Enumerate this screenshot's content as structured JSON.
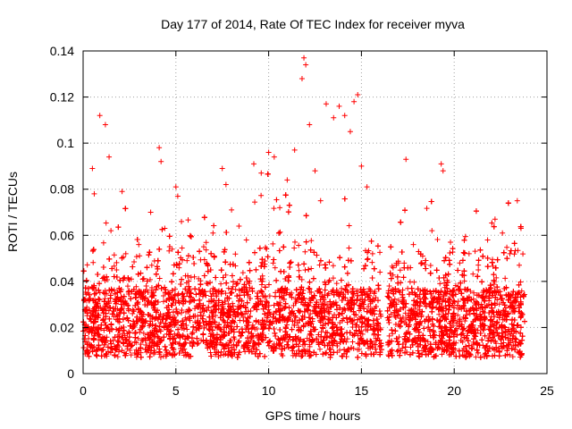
{
  "chart_data": {
    "type": "scatter",
    "title": "Day 177 of 2014, Rate Of TEC Index for receiver myva",
    "xlabel": "GPS time / hours",
    "ylabel": "ROTI / TECUs",
    "xlim": [
      0,
      25
    ],
    "ylim": [
      0,
      0.14
    ],
    "x_ticks": [
      0,
      5,
      10,
      15,
      20,
      25
    ],
    "y_ticks": [
      0,
      0.02,
      0.04,
      0.06,
      0.08,
      0.1,
      0.12,
      0.14
    ],
    "x_tick_labels": [
      "0",
      "5",
      "10",
      "15",
      "20",
      "25"
    ],
    "y_tick_labels": [
      "0",
      "0.02",
      "0.04",
      "0.06",
      "0.08",
      "0.1",
      "0.12",
      "0.14"
    ],
    "grid": true,
    "marker": "+",
    "color": "#ff0000",
    "data_gap_hours": [
      16.1,
      16.4
    ],
    "series": [
      {
        "x": [
          0.1,
          0.3,
          0.5,
          0.6,
          0.9,
          1.2,
          1.4,
          1.5,
          1.8,
          2.1,
          2.3,
          2.6,
          3.0,
          3.4,
          3.7,
          4.1,
          4.2,
          4.4,
          4.8,
          5.0,
          5.1,
          5.3,
          5.6,
          6.0,
          6.5,
          7.0,
          7.5,
          7.7,
          8.0,
          8.4,
          8.8,
          9.2,
          9.6,
          10.0,
          10.3,
          10.6,
          11.0,
          11.4,
          11.8,
          11.9,
          12.0,
          12.2,
          12.5,
          12.8,
          13.1,
          13.5,
          13.8,
          14.1,
          14.4,
          14.6,
          14.8,
          15.0,
          15.3,
          15.6,
          16.0,
          16.5,
          17.0,
          17.4,
          17.8,
          18.3,
          18.8,
          19.3,
          19.4,
          19.8,
          20.3,
          20.8,
          21.3,
          21.8,
          22.2,
          22.6,
          23.0,
          23.4,
          23.6
        ],
        "y": [
          0.021,
          0.032,
          0.089,
          0.078,
          0.112,
          0.108,
          0.094,
          0.062,
          0.045,
          0.079,
          0.052,
          0.041,
          0.056,
          0.038,
          0.047,
          0.098,
          0.092,
          0.063,
          0.054,
          0.081,
          0.077,
          0.066,
          0.049,
          0.042,
          0.055,
          0.061,
          0.089,
          0.082,
          0.071,
          0.064,
          0.058,
          0.091,
          0.087,
          0.096,
          0.094,
          0.072,
          0.084,
          0.097,
          0.128,
          0.137,
          0.134,
          0.108,
          0.088,
          0.075,
          0.117,
          0.111,
          0.116,
          0.112,
          0.105,
          0.118,
          0.121,
          0.09,
          0.081,
          0.052,
          0.044,
          0.038,
          0.048,
          0.093,
          0.056,
          0.051,
          0.062,
          0.091,
          0.088,
          0.057,
          0.048,
          0.052,
          0.045,
          0.058,
          0.067,
          0.061,
          0.052,
          0.075,
          0.063
        ]
      }
    ]
  }
}
